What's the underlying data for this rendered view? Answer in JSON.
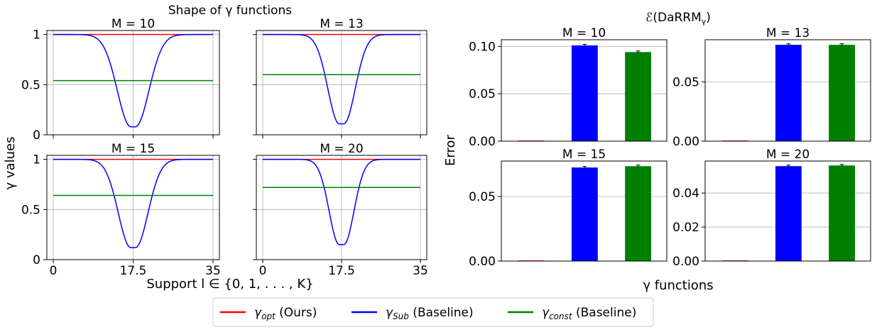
{
  "chart_data": [
    {
      "type": "line",
      "group": "left",
      "suptitle": "Shape of γ functions",
      "shared_ylabel": "γ values",
      "shared_xlabel": "Support l ∈ {0, 1, . . . , K}",
      "xticks": [
        "0",
        "17.5",
        "35"
      ],
      "yticks": [
        "0",
        "0.5",
        "1"
      ],
      "xlim": [
        0,
        35
      ],
      "ylim": [
        0,
        1.04
      ],
      "grid": true,
      "panels": [
        {
          "title": "M = 10",
          "series": [
            {
              "ref": "opt",
              "kind": "const",
              "value": 1.0
            },
            {
              "ref": "sub",
              "kind": "dip",
              "min": 0.08,
              "x_min": 17.5,
              "width": 4.2
            },
            {
              "ref": "const",
              "kind": "const",
              "value": 0.54
            }
          ]
        },
        {
          "title": "M = 13",
          "series": [
            {
              "ref": "opt",
              "kind": "const",
              "value": 1.0
            },
            {
              "ref": "sub",
              "kind": "dip",
              "min": 0.11,
              "x_min": 17.5,
              "width": 3.6
            },
            {
              "ref": "const",
              "kind": "const",
              "value": 0.6
            }
          ]
        },
        {
          "title": "M = 15",
          "series": [
            {
              "ref": "opt",
              "kind": "const",
              "value": 1.0
            },
            {
              "ref": "sub",
              "kind": "dip",
              "min": 0.12,
              "x_min": 17.5,
              "width": 3.9
            },
            {
              "ref": "const",
              "kind": "const",
              "value": 0.64
            }
          ]
        },
        {
          "title": "M = 20",
          "series": [
            {
              "ref": "opt",
              "kind": "const",
              "value": 1.0
            },
            {
              "ref": "sub",
              "kind": "dip",
              "min": 0.15,
              "x_min": 17.5,
              "width": 3.2
            },
            {
              "ref": "const",
              "kind": "const",
              "value": 0.72
            }
          ]
        }
      ]
    },
    {
      "type": "bar",
      "group": "right",
      "suptitle": "ℰ(DaRRM",
      "suptitle_sub": "γ",
      "suptitle_end": ")",
      "shared_ylabel": "Error",
      "shared_xlabel": "γ functions",
      "categories": [
        "opt",
        "sub",
        "const"
      ],
      "grid": true,
      "panels": [
        {
          "title": "M = 10",
          "values": [
            0.0,
            0.101,
            0.094
          ],
          "ylim": [
            0,
            0.107
          ],
          "yticks": [
            "0.00",
            "0.05",
            "0.10"
          ],
          "ytick_values": [
            0,
            0.05,
            0.1
          ]
        },
        {
          "title": "M = 13",
          "values": [
            0.0,
            0.0812,
            0.0812
          ],
          "ylim": [
            0,
            0.0855
          ],
          "yticks": [
            "0.00",
            "0.05"
          ],
          "ytick_values": [
            0,
            0.05
          ]
        },
        {
          "title": "M = 15",
          "values": [
            0.0,
            0.0725,
            0.0735
          ],
          "ylim": [
            0,
            0.0775
          ],
          "yticks": [
            "0.00",
            "0.05"
          ],
          "ytick_values": [
            0,
            0.05
          ]
        },
        {
          "title": "M = 20",
          "values": [
            0.0,
            0.0558,
            0.0562
          ],
          "ylim": [
            0,
            0.0588
          ],
          "yticks": [
            "0.00",
            "0.02",
            "0.04"
          ],
          "ytick_values": [
            0,
            0.02,
            0.04
          ]
        }
      ]
    }
  ],
  "legend": {
    "placement": "bottom-center",
    "items": [
      {
        "ref": "opt",
        "symbol": "γ",
        "sub": "opt",
        "text": " (Ours)",
        "color": "#ff0000"
      },
      {
        "ref": "sub",
        "symbol": "γ",
        "sub": "Sub",
        "text": " (Baseline)",
        "color": "#0000ff"
      },
      {
        "ref": "const",
        "symbol": "γ",
        "sub": "const",
        "text": " (Baseline)",
        "color": "#008000"
      }
    ]
  }
}
